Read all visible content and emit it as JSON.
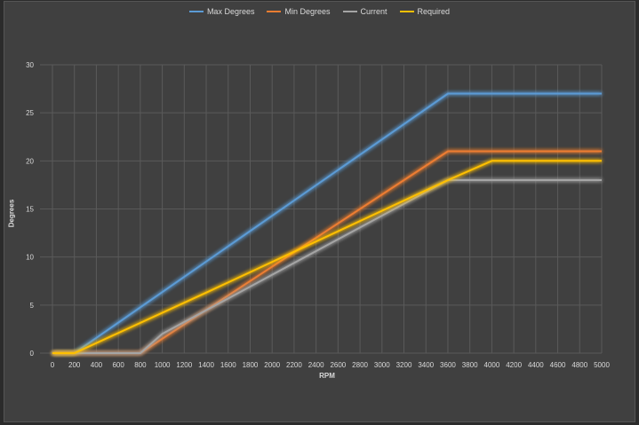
{
  "chart_data": {
    "type": "line",
    "title": "",
    "xlabel": "RPM",
    "ylabel": "Degrees",
    "xlim": [
      0,
      5000
    ],
    "ylim": [
      0,
      30
    ],
    "x_ticks": [
      "0",
      "200",
      "400",
      "600",
      "800",
      "1000",
      "1200",
      "1400",
      "1600",
      "1800",
      "2000",
      "2200",
      "2400",
      "2600",
      "2800",
      "3000",
      "3200",
      "3400",
      "3600",
      "3800",
      "4000",
      "4200",
      "4400",
      "4600",
      "4800",
      "5000"
    ],
    "y_ticks": [
      "0",
      "5",
      "10",
      "15",
      "20",
      "25",
      "30"
    ],
    "grid": true,
    "legend_position": "top",
    "series": [
      {
        "name": "Max Degrees",
        "color": "#5b9bd5",
        "points": [
          [
            0,
            0
          ],
          [
            200,
            0
          ],
          [
            3600,
            27
          ],
          [
            5000,
            27
          ]
        ]
      },
      {
        "name": "Min Degrees",
        "color": "#ed7d31",
        "points": [
          [
            0,
            0
          ],
          [
            800,
            0
          ],
          [
            3600,
            21
          ],
          [
            5000,
            21
          ]
        ]
      },
      {
        "name": "Current",
        "color": "#a5a5a5",
        "points": [
          [
            0,
            0
          ],
          [
            800,
            0
          ],
          [
            1000,
            2
          ],
          [
            3600,
            18
          ],
          [
            5000,
            18
          ]
        ]
      },
      {
        "name": "Required",
        "color": "#ffc000",
        "points": [
          [
            0,
            0
          ],
          [
            200,
            0
          ],
          [
            1400,
            6.3
          ],
          [
            3600,
            18
          ],
          [
            4000,
            20
          ],
          [
            5000,
            20
          ]
        ]
      }
    ]
  },
  "colors": {
    "background": "#404040",
    "grid": "#5a5a5a",
    "text": "#d9d9d9"
  }
}
